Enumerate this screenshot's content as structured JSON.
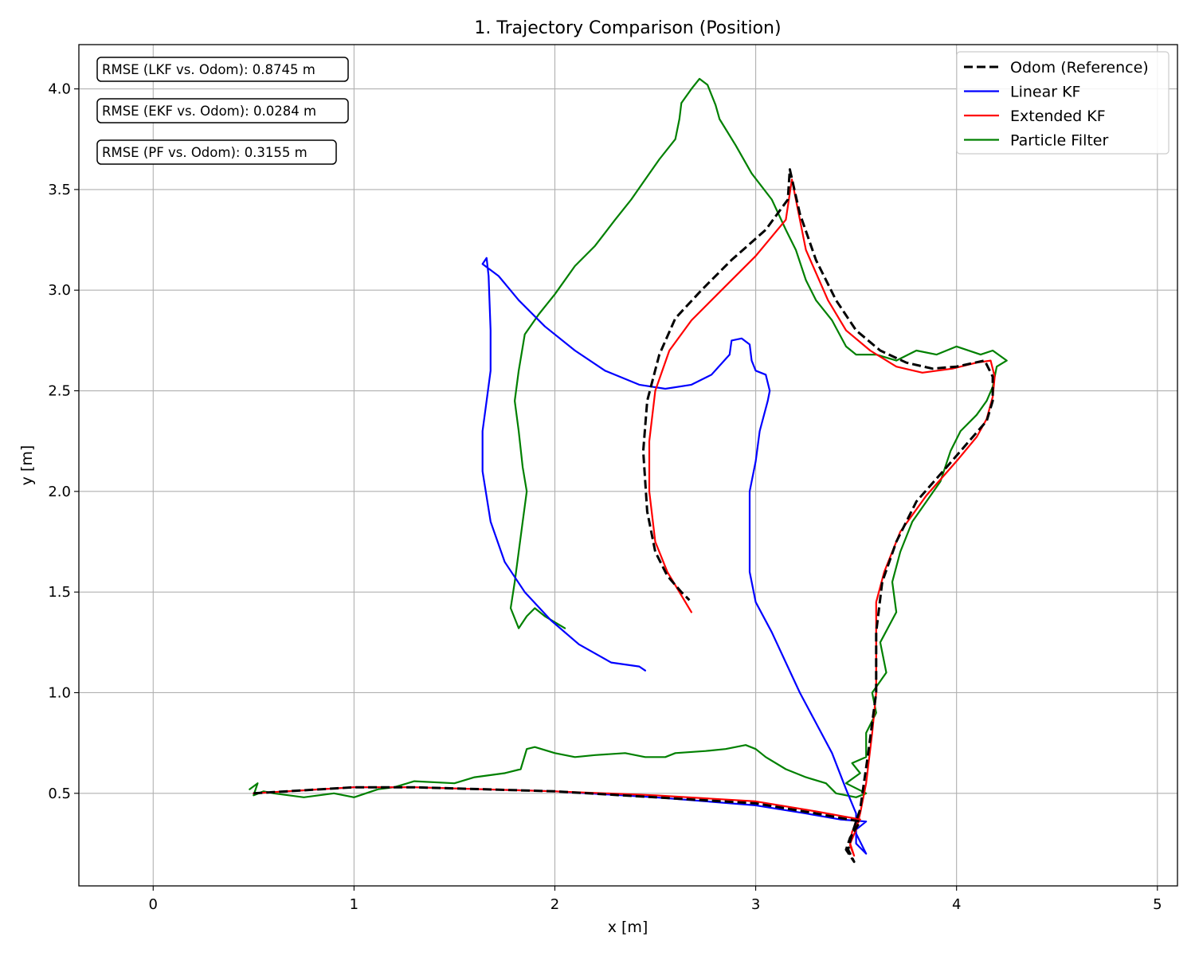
{
  "chart_data": {
    "type": "line",
    "title": "1. Trajectory Comparison (Position)",
    "xlabel": "x [m]",
    "ylabel": "y [m]",
    "xlim": [
      -0.37,
      5.1
    ],
    "ylim": [
      0.04,
      4.22
    ],
    "xticks": [
      "0",
      "1",
      "2",
      "3",
      "4",
      "5"
    ],
    "xtick_values": [
      0,
      1,
      2,
      3,
      4,
      5
    ],
    "yticks": [
      "0.5",
      "1.0",
      "1.5",
      "2.0",
      "2.5",
      "3.0",
      "3.5",
      "4.0"
    ],
    "ytick_values": [
      0.5,
      1.0,
      1.5,
      2.0,
      2.5,
      3.0,
      3.5,
      4.0
    ],
    "grid": true,
    "legend_position": "top-right",
    "annotations": [
      "RMSE (LKF vs. Odom): 0.8745 m",
      "RMSE (EKF vs. Odom): 0.0284 m",
      "RMSE (PF vs. Odom): 0.3155 m"
    ],
    "series": [
      {
        "name": "Odom (Reference)",
        "color": "#000000",
        "dash": true,
        "points": [
          [
            0.5,
            0.5
          ],
          [
            1.0,
            0.53
          ],
          [
            1.3,
            0.53
          ],
          [
            2.0,
            0.51
          ],
          [
            2.5,
            0.48
          ],
          [
            3.0,
            0.45
          ],
          [
            3.3,
            0.4
          ],
          [
            3.52,
            0.36
          ],
          [
            3.47,
            0.28
          ],
          [
            3.45,
            0.22
          ],
          [
            3.49,
            0.16
          ],
          [
            3.46,
            0.22
          ],
          [
            3.48,
            0.3
          ],
          [
            3.5,
            0.36
          ],
          [
            3.52,
            0.42
          ],
          [
            3.56,
            0.7
          ],
          [
            3.6,
            1.0
          ],
          [
            3.6,
            1.3
          ],
          [
            3.63,
            1.55
          ],
          [
            3.7,
            1.75
          ],
          [
            3.8,
            1.95
          ],
          [
            3.95,
            2.12
          ],
          [
            4.08,
            2.27
          ],
          [
            4.15,
            2.35
          ],
          [
            4.18,
            2.45
          ],
          [
            4.18,
            2.57
          ],
          [
            4.14,
            2.65
          ],
          [
            4.0,
            2.62
          ],
          [
            3.88,
            2.61
          ],
          [
            3.75,
            2.64
          ],
          [
            3.62,
            2.7
          ],
          [
            3.5,
            2.8
          ],
          [
            3.4,
            2.95
          ],
          [
            3.3,
            3.15
          ],
          [
            3.22,
            3.38
          ],
          [
            3.17,
            3.6
          ],
          [
            3.16,
            3.45
          ],
          [
            3.05,
            3.3
          ],
          [
            2.88,
            3.15
          ],
          [
            2.73,
            3.0
          ],
          [
            2.6,
            2.86
          ],
          [
            2.52,
            2.68
          ],
          [
            2.46,
            2.45
          ],
          [
            2.44,
            2.2
          ],
          [
            2.46,
            1.9
          ],
          [
            2.5,
            1.7
          ],
          [
            2.56,
            1.58
          ],
          [
            2.63,
            1.5
          ],
          [
            2.67,
            1.46
          ]
        ]
      },
      {
        "name": "Linear KF",
        "color": "#0000ff",
        "dash": false,
        "points": [
          [
            0.5,
            0.5
          ],
          [
            1.0,
            0.53
          ],
          [
            1.3,
            0.53
          ],
          [
            2.0,
            0.51
          ],
          [
            2.5,
            0.48
          ],
          [
            3.0,
            0.44
          ],
          [
            3.25,
            0.4
          ],
          [
            3.42,
            0.37
          ],
          [
            3.55,
            0.36
          ],
          [
            3.5,
            0.32
          ],
          [
            3.5,
            0.25
          ],
          [
            3.55,
            0.2
          ],
          [
            3.5,
            0.3
          ],
          [
            3.5,
            0.4
          ],
          [
            3.45,
            0.52
          ],
          [
            3.38,
            0.7
          ],
          [
            3.3,
            0.85
          ],
          [
            3.22,
            1.0
          ],
          [
            3.15,
            1.15
          ],
          [
            3.08,
            1.3
          ],
          [
            3.0,
            1.45
          ],
          [
            2.97,
            1.6
          ],
          [
            2.97,
            1.8
          ],
          [
            2.97,
            2.0
          ],
          [
            3.0,
            2.15
          ],
          [
            3.02,
            2.3
          ],
          [
            3.06,
            2.45
          ],
          [
            3.07,
            2.5
          ],
          [
            3.05,
            2.58
          ],
          [
            3.0,
            2.6
          ],
          [
            2.98,
            2.65
          ],
          [
            2.97,
            2.73
          ],
          [
            2.93,
            2.76
          ],
          [
            2.88,
            2.75
          ],
          [
            2.87,
            2.68
          ],
          [
            2.78,
            2.58
          ],
          [
            2.68,
            2.53
          ],
          [
            2.55,
            2.51
          ],
          [
            2.42,
            2.53
          ],
          [
            2.25,
            2.6
          ],
          [
            2.1,
            2.7
          ],
          [
            1.95,
            2.82
          ],
          [
            1.82,
            2.95
          ],
          [
            1.72,
            3.07
          ],
          [
            1.64,
            3.13
          ],
          [
            1.66,
            3.16
          ],
          [
            1.67,
            3.07
          ],
          [
            1.68,
            2.8
          ],
          [
            1.68,
            2.6
          ],
          [
            1.66,
            2.45
          ],
          [
            1.64,
            2.3
          ],
          [
            1.64,
            2.1
          ],
          [
            1.68,
            1.85
          ],
          [
            1.75,
            1.65
          ],
          [
            1.85,
            1.5
          ],
          [
            1.98,
            1.36
          ],
          [
            2.12,
            1.24
          ],
          [
            2.28,
            1.15
          ],
          [
            2.42,
            1.13
          ],
          [
            2.45,
            1.11
          ]
        ]
      },
      {
        "name": "Extended KF",
        "color": "#ff0000",
        "dash": false,
        "points": [
          [
            0.5,
            0.5
          ],
          [
            1.0,
            0.53
          ],
          [
            1.3,
            0.53
          ],
          [
            2.0,
            0.51
          ],
          [
            2.5,
            0.49
          ],
          [
            3.0,
            0.46
          ],
          [
            3.3,
            0.41
          ],
          [
            3.52,
            0.37
          ],
          [
            3.48,
            0.31
          ],
          [
            3.47,
            0.24
          ],
          [
            3.49,
            0.19
          ],
          [
            3.47,
            0.25
          ],
          [
            3.5,
            0.32
          ],
          [
            3.52,
            0.4
          ],
          [
            3.55,
            0.55
          ],
          [
            3.58,
            0.8
          ],
          [
            3.6,
            1.0
          ],
          [
            3.6,
            1.25
          ],
          [
            3.6,
            1.45
          ],
          [
            3.64,
            1.6
          ],
          [
            3.72,
            1.8
          ],
          [
            3.85,
            1.98
          ],
          [
            4.0,
            2.15
          ],
          [
            4.1,
            2.27
          ],
          [
            4.15,
            2.36
          ],
          [
            4.18,
            2.47
          ],
          [
            4.19,
            2.57
          ],
          [
            4.17,
            2.65
          ],
          [
            4.1,
            2.64
          ],
          [
            3.98,
            2.61
          ],
          [
            3.83,
            2.59
          ],
          [
            3.7,
            2.62
          ],
          [
            3.57,
            2.7
          ],
          [
            3.45,
            2.8
          ],
          [
            3.36,
            2.95
          ],
          [
            3.25,
            3.2
          ],
          [
            3.18,
            3.55
          ],
          [
            3.15,
            3.35
          ],
          [
            3.0,
            3.17
          ],
          [
            2.83,
            3.0
          ],
          [
            2.68,
            2.85
          ],
          [
            2.57,
            2.7
          ],
          [
            2.5,
            2.5
          ],
          [
            2.47,
            2.25
          ],
          [
            2.47,
            2.0
          ],
          [
            2.5,
            1.75
          ],
          [
            2.56,
            1.6
          ],
          [
            2.62,
            1.5
          ],
          [
            2.68,
            1.4
          ]
        ]
      },
      {
        "name": "Particle Filter",
        "color": "#008000",
        "dash": false,
        "points": [
          [
            0.48,
            0.52
          ],
          [
            0.52,
            0.55
          ],
          [
            0.5,
            0.49
          ],
          [
            0.55,
            0.51
          ],
          [
            0.6,
            0.5
          ],
          [
            0.75,
            0.48
          ],
          [
            0.9,
            0.5
          ],
          [
            1.0,
            0.48
          ],
          [
            1.12,
            0.52
          ],
          [
            1.2,
            0.53
          ],
          [
            1.3,
            0.56
          ],
          [
            1.5,
            0.55
          ],
          [
            1.6,
            0.58
          ],
          [
            1.75,
            0.6
          ],
          [
            1.83,
            0.62
          ],
          [
            1.86,
            0.72
          ],
          [
            1.9,
            0.73
          ],
          [
            2.0,
            0.7
          ],
          [
            2.1,
            0.68
          ],
          [
            2.2,
            0.69
          ],
          [
            2.35,
            0.7
          ],
          [
            2.45,
            0.68
          ],
          [
            2.55,
            0.68
          ],
          [
            2.6,
            0.7
          ],
          [
            2.75,
            0.71
          ],
          [
            2.85,
            0.72
          ],
          [
            2.95,
            0.74
          ],
          [
            3.0,
            0.72
          ],
          [
            3.05,
            0.68
          ],
          [
            3.15,
            0.62
          ],
          [
            3.25,
            0.58
          ],
          [
            3.35,
            0.55
          ],
          [
            3.4,
            0.5
          ],
          [
            3.5,
            0.48
          ],
          [
            3.55,
            0.5
          ],
          [
            3.45,
            0.55
          ],
          [
            3.52,
            0.6
          ],
          [
            3.48,
            0.65
          ],
          [
            3.55,
            0.68
          ],
          [
            3.55,
            0.8
          ],
          [
            3.6,
            0.9
          ],
          [
            3.58,
            1.0
          ],
          [
            3.65,
            1.1
          ],
          [
            3.62,
            1.25
          ],
          [
            3.7,
            1.4
          ],
          [
            3.68,
            1.55
          ],
          [
            3.72,
            1.7
          ],
          [
            3.78,
            1.85
          ],
          [
            3.85,
            1.95
          ],
          [
            3.92,
            2.05
          ],
          [
            3.97,
            2.2
          ],
          [
            4.02,
            2.3
          ],
          [
            4.1,
            2.38
          ],
          [
            4.15,
            2.45
          ],
          [
            4.18,
            2.52
          ],
          [
            4.2,
            2.62
          ],
          [
            4.25,
            2.65
          ],
          [
            4.18,
            2.7
          ],
          [
            4.12,
            2.68
          ],
          [
            4.0,
            2.72
          ],
          [
            3.9,
            2.68
          ],
          [
            3.8,
            2.7
          ],
          [
            3.7,
            2.65
          ],
          [
            3.6,
            2.68
          ],
          [
            3.5,
            2.68
          ],
          [
            3.45,
            2.72
          ],
          [
            3.38,
            2.85
          ],
          [
            3.3,
            2.95
          ],
          [
            3.25,
            3.05
          ],
          [
            3.2,
            3.2
          ],
          [
            3.15,
            3.3
          ],
          [
            3.08,
            3.45
          ],
          [
            2.98,
            3.58
          ],
          [
            2.9,
            3.72
          ],
          [
            2.82,
            3.85
          ],
          [
            2.8,
            3.92
          ],
          [
            2.76,
            4.02
          ],
          [
            2.72,
            4.05
          ],
          [
            2.68,
            4.0
          ],
          [
            2.63,
            3.93
          ],
          [
            2.62,
            3.85
          ],
          [
            2.6,
            3.75
          ],
          [
            2.52,
            3.65
          ],
          [
            2.45,
            3.55
          ],
          [
            2.38,
            3.45
          ],
          [
            2.3,
            3.35
          ],
          [
            2.2,
            3.22
          ],
          [
            2.1,
            3.12
          ],
          [
            2.0,
            2.98
          ],
          [
            1.92,
            2.88
          ],
          [
            1.85,
            2.78
          ],
          [
            1.82,
            2.6
          ],
          [
            1.8,
            2.45
          ],
          [
            1.82,
            2.3
          ],
          [
            1.84,
            2.12
          ],
          [
            1.86,
            2.0
          ],
          [
            1.84,
            1.85
          ],
          [
            1.82,
            1.7
          ],
          [
            1.8,
            1.55
          ],
          [
            1.78,
            1.42
          ],
          [
            1.82,
            1.32
          ],
          [
            1.86,
            1.38
          ],
          [
            1.9,
            1.42
          ],
          [
            1.95,
            1.38
          ],
          [
            2.0,
            1.35
          ],
          [
            2.05,
            1.32
          ]
        ]
      }
    ]
  }
}
